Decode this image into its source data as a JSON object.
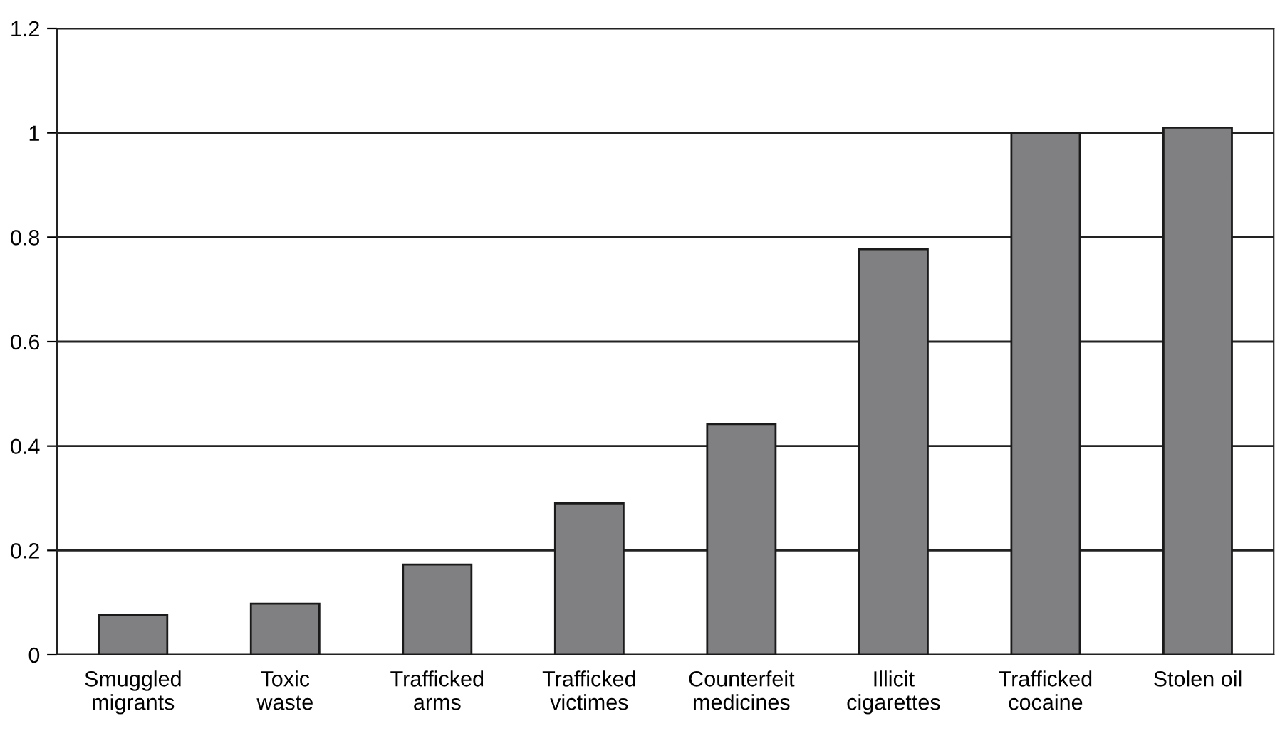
{
  "chart_data": {
    "type": "bar",
    "categories": [
      "Smuggled\nmigrants",
      "Toxic\nwaste",
      "Trafficked\narms",
      "Trafficked\nvictimes",
      "Counterfeit\nmedicines",
      "Illicit\ncigarettes",
      "Trafficked\ncocaine",
      "Stolen oil"
    ],
    "values": [
      0.076,
      0.098,
      0.173,
      0.29,
      0.442,
      0.777,
      1.0,
      1.01
    ],
    "color": "#808083",
    "ylim": [
      0,
      1.2
    ],
    "yticks": [
      0,
      0.2,
      0.4,
      0.6,
      0.8,
      1,
      1.2
    ],
    "grid": "y"
  }
}
